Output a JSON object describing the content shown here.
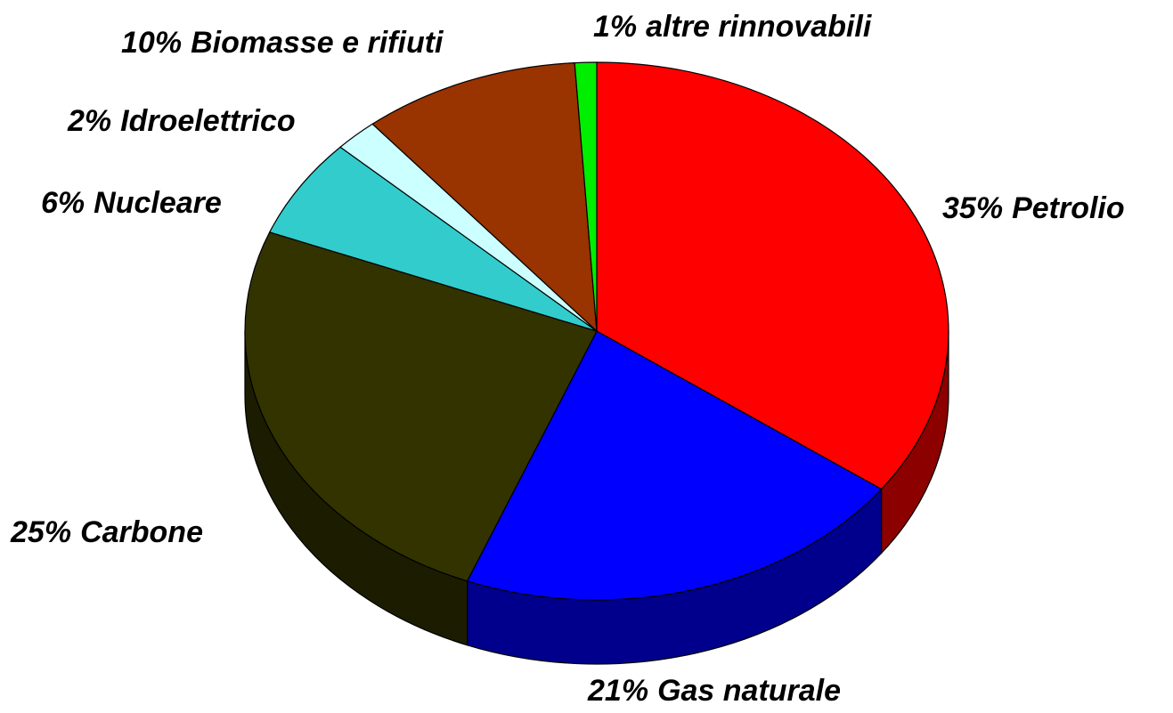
{
  "chart_data": {
    "type": "pie",
    "categories": [
      "Petrolio",
      "Gas naturale",
      "Carbone",
      "Nucleare",
      "Idroelettrico",
      "Biomasse e rifiuti",
      "altre rinnovabili"
    ],
    "values": [
      35,
      21,
      25,
      6,
      2,
      10,
      1
    ],
    "value_labels": [
      "35%",
      "21%",
      "25%",
      "6%",
      "2%",
      "10%",
      "1%"
    ],
    "colors": [
      "#ff0000",
      "#0000ff",
      "#333300",
      "#33cccc",
      "#ccffff",
      "#993300",
      "#00ee00"
    ]
  }
}
